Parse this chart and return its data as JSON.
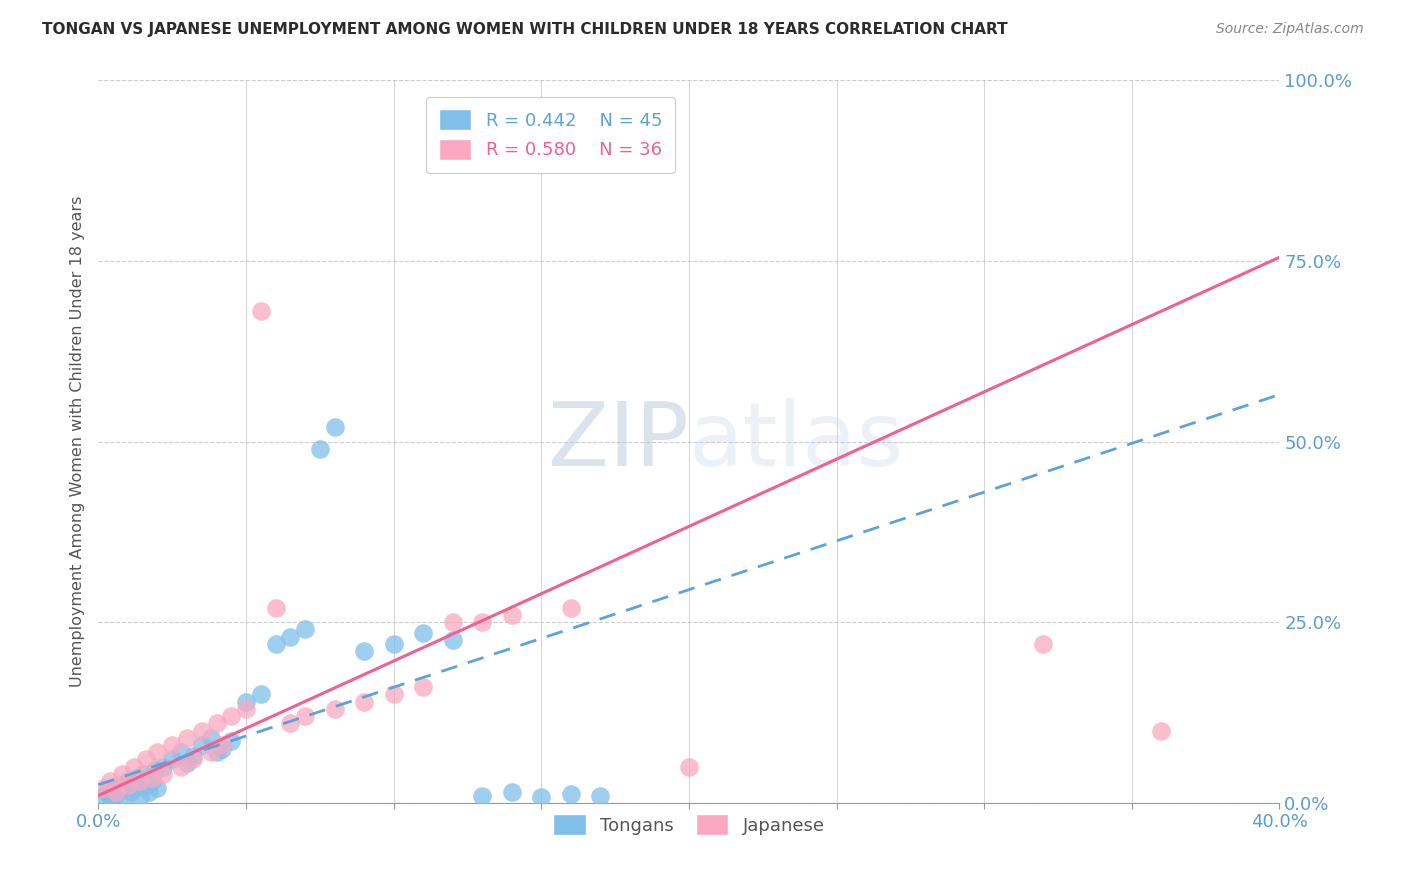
{
  "title": "TONGAN VS JAPANESE UNEMPLOYMENT AMONG WOMEN WITH CHILDREN UNDER 18 YEARS CORRELATION CHART",
  "source": "Source: ZipAtlas.com",
  "ylabel": "Unemployment Among Women with Children Under 18 years",
  "xlim": [
    0.0,
    0.4
  ],
  "ylim": [
    0.0,
    1.0
  ],
  "xticks": [
    0.0,
    0.05,
    0.1,
    0.15,
    0.2,
    0.25,
    0.3,
    0.35,
    0.4
  ],
  "yticks": [
    0.0,
    0.25,
    0.5,
    0.75,
    1.0
  ],
  "yticklabels": [
    "0.0%",
    "25.0%",
    "50.0%",
    "75.0%",
    "100.0%"
  ],
  "blue_color": "#7fbfea",
  "pink_color": "#f9a8c0",
  "blue_line_color": "#5ba3d9",
  "pink_line_color": "#f06090",
  "tick_color": "#5b9bd5",
  "legend_r_blue": "R = 0.442",
  "legend_n_blue": "N = 45",
  "legend_r_pink": "R = 0.580",
  "legend_n_pink": "N = 36",
  "blue_line_x0": 0.0,
  "blue_line_y0": 0.025,
  "blue_line_x1": 0.4,
  "blue_line_y1": 0.565,
  "pink_line_x0": 0.0,
  "pink_line_y0": 0.01,
  "pink_line_x1": 0.4,
  "pink_line_y1": 0.755,
  "tongans_x": [
    0.002,
    0.003,
    0.004,
    0.005,
    0.006,
    0.007,
    0.008,
    0.009,
    0.01,
    0.011,
    0.012,
    0.013,
    0.014,
    0.015,
    0.016,
    0.017,
    0.018,
    0.019,
    0.02,
    0.022,
    0.025,
    0.028,
    0.03,
    0.032,
    0.035,
    0.038,
    0.04,
    0.042,
    0.045,
    0.05,
    0.055,
    0.06,
    0.065,
    0.07,
    0.075,
    0.08,
    0.09,
    0.1,
    0.11,
    0.12,
    0.13,
    0.14,
    0.15,
    0.16,
    0.17
  ],
  "tongans_y": [
    0.01,
    0.015,
    0.008,
    0.02,
    0.012,
    0.018,
    0.025,
    0.01,
    0.03,
    0.015,
    0.02,
    0.035,
    0.008,
    0.04,
    0.025,
    0.015,
    0.03,
    0.045,
    0.02,
    0.05,
    0.06,
    0.07,
    0.055,
    0.065,
    0.08,
    0.09,
    0.07,
    0.075,
    0.085,
    0.14,
    0.15,
    0.22,
    0.23,
    0.24,
    0.49,
    0.52,
    0.21,
    0.22,
    0.235,
    0.225,
    0.01,
    0.015,
    0.008,
    0.012,
    0.01
  ],
  "japanese_x": [
    0.002,
    0.004,
    0.006,
    0.008,
    0.01,
    0.012,
    0.014,
    0.016,
    0.018,
    0.02,
    0.022,
    0.025,
    0.028,
    0.03,
    0.032,
    0.035,
    0.038,
    0.04,
    0.042,
    0.045,
    0.05,
    0.055,
    0.06,
    0.065,
    0.07,
    0.08,
    0.09,
    0.1,
    0.11,
    0.12,
    0.13,
    0.14,
    0.16,
    0.2,
    0.32,
    0.36
  ],
  "japanese_y": [
    0.02,
    0.03,
    0.015,
    0.04,
    0.025,
    0.05,
    0.03,
    0.06,
    0.035,
    0.07,
    0.04,
    0.08,
    0.05,
    0.09,
    0.06,
    0.1,
    0.07,
    0.11,
    0.08,
    0.12,
    0.13,
    0.68,
    0.27,
    0.11,
    0.12,
    0.13,
    0.14,
    0.15,
    0.16,
    0.25,
    0.25,
    0.26,
    0.27,
    0.05,
    0.22,
    0.1
  ]
}
